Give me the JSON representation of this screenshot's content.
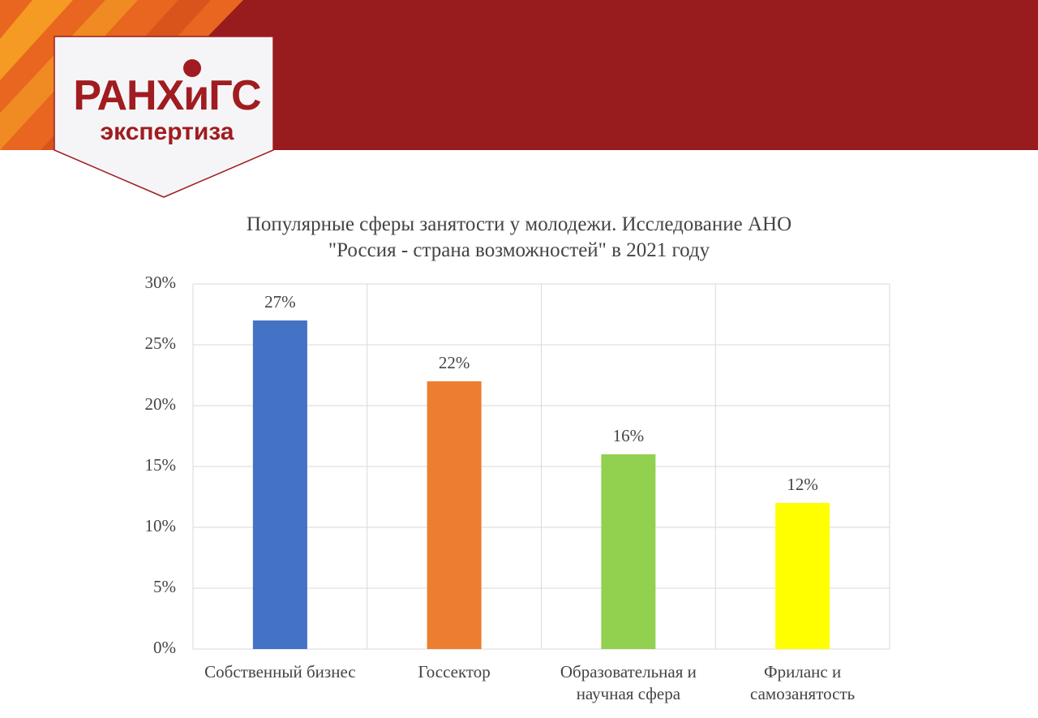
{
  "header": {
    "logo_title": "РАНХиГС",
    "logo_subtitle": "экспертиза"
  },
  "chart_data": {
    "type": "bar",
    "title": "Популярные сферы занятости у молодежи. Исследование АНО \"Россия - страна возможностей\" в 2021 году",
    "categories": [
      "Собственный бизнес",
      "Госсектор",
      "Образовательная и научная сфера",
      "Фриланс и самозанятость"
    ],
    "values": [
      27,
      22,
      16,
      12
    ],
    "value_labels": [
      "27%",
      "22%",
      "16%",
      "12%"
    ],
    "colors": [
      "#4472c4",
      "#ed7d31",
      "#92d050",
      "#ffff00"
    ],
    "ylim": [
      0,
      30
    ],
    "yticks": [
      {
        "value": 0,
        "label": "0%"
      },
      {
        "value": 5,
        "label": "5%"
      },
      {
        "value": 10,
        "label": "10%"
      },
      {
        "value": 15,
        "label": "15%"
      },
      {
        "value": 20,
        "label": "20%"
      },
      {
        "value": 25,
        "label": "25%"
      },
      {
        "value": 30,
        "label": "30%"
      }
    ],
    "grid": true
  }
}
